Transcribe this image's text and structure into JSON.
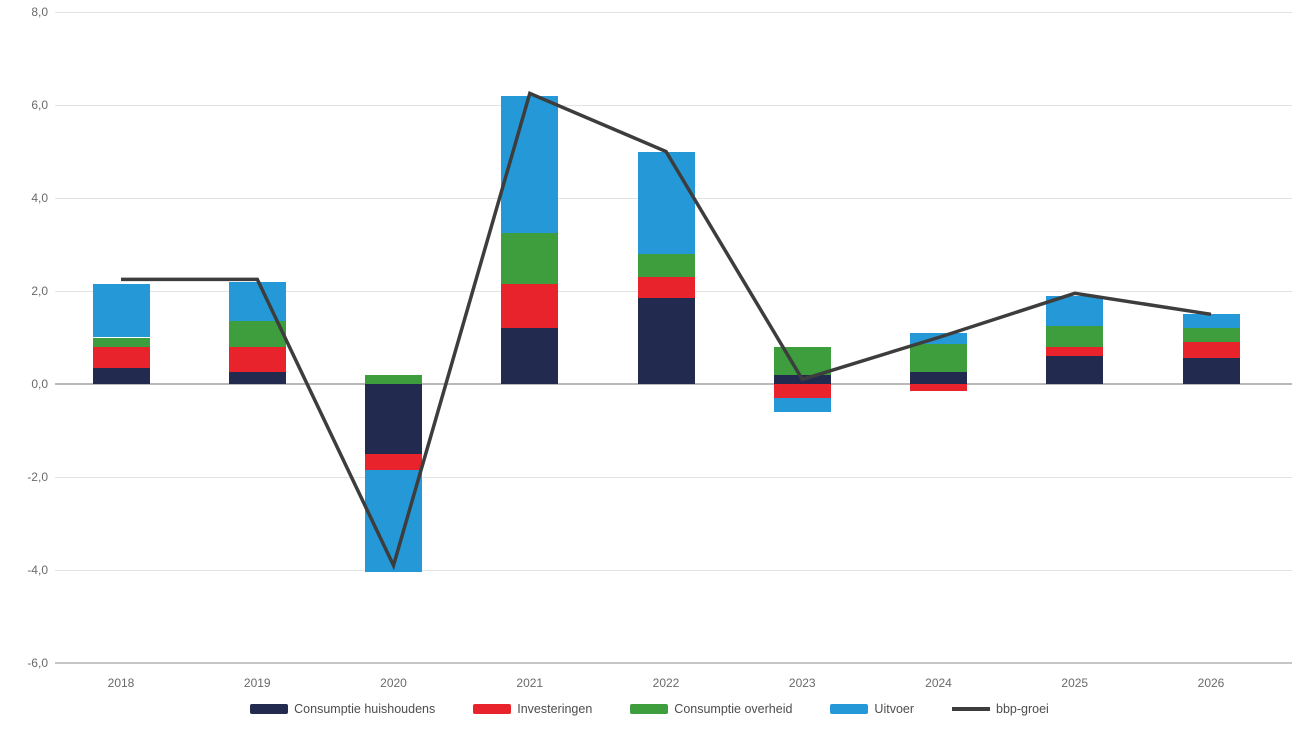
{
  "chart_data": {
    "type": "bar",
    "subtype": "stacked-bar-with-line",
    "title": "",
    "xlabel": "",
    "ylabel": "",
    "categories": [
      "2018",
      "2019",
      "2020",
      "2021",
      "2022",
      "2023",
      "2024",
      "2025",
      "2026"
    ],
    "series": [
      {
        "name": "Consumptie huishoudens",
        "color": "#232a4f",
        "values": [
          0.35,
          0.25,
          -1.5,
          1.2,
          1.85,
          0.2,
          0.25,
          0.6,
          0.55
        ]
      },
      {
        "name": "Investeringen",
        "color": "#e8232b",
        "values": [
          0.45,
          0.55,
          -0.35,
          0.95,
          0.45,
          -0.3,
          -0.15,
          0.2,
          0.35
        ]
      },
      {
        "name": "Consumptie overheid",
        "color": "#3e9e3e",
        "values": [
          0.2,
          0.55,
          0.2,
          1.1,
          0.5,
          0.6,
          0.6,
          0.45,
          0.3
        ]
      },
      {
        "name": "Uitvoer",
        "color": "#2599d8",
        "values": [
          1.15,
          0.85,
          -2.2,
          2.95,
          2.2,
          -0.3,
          0.25,
          0.65,
          0.3
        ]
      }
    ],
    "line_series": {
      "name": "bbp-groei",
      "color": "#3d3d3d",
      "values": [
        2.25,
        2.25,
        -3.9,
        6.25,
        5.0,
        0.1,
        1.0,
        1.95,
        1.5
      ]
    },
    "ylim": [
      -6,
      8
    ],
    "yticks": [
      {
        "value": 8,
        "label": "8,0"
      },
      {
        "value": 6,
        "label": "6,0"
      },
      {
        "value": 4,
        "label": "4,0"
      },
      {
        "value": 2,
        "label": "2,0"
      },
      {
        "value": 0,
        "label": "0,0"
      },
      {
        "value": -2,
        "label": "-2,0"
      },
      {
        "value": -4,
        "label": "-4,0"
      },
      {
        "value": -6,
        "label": "-6,0"
      }
    ],
    "grid": true,
    "legend_position": "bottom"
  }
}
